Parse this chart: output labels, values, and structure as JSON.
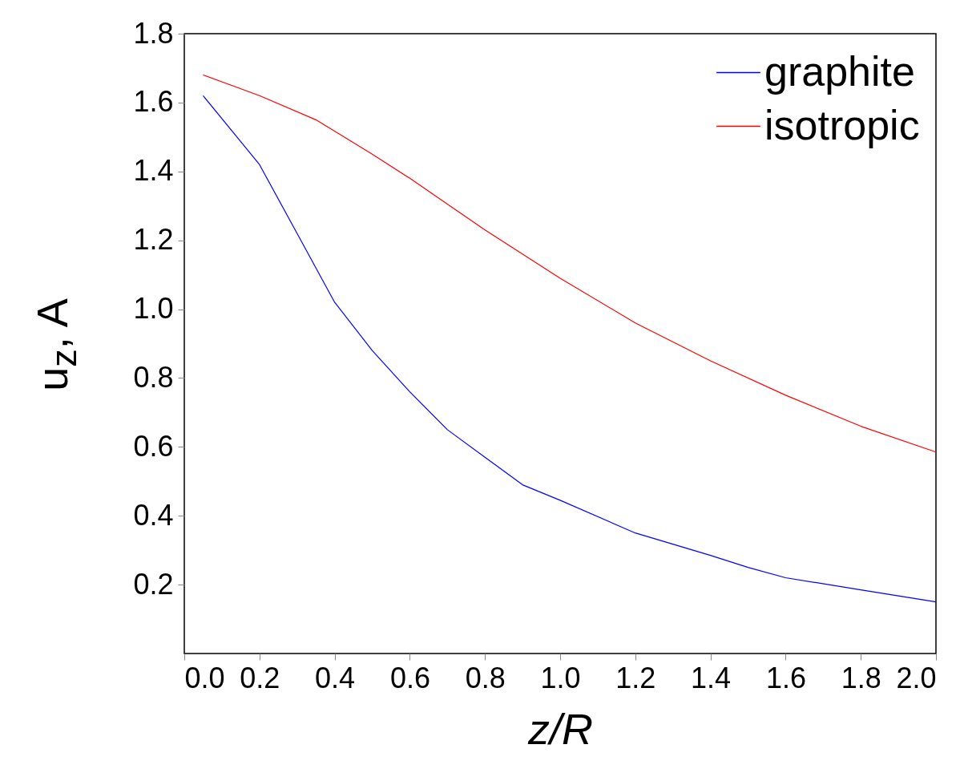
{
  "chart_data": {
    "type": "line",
    "xlabel": "z/R",
    "ylabel": "u$_{z}$, A",
    "xlim": [
      0,
      2
    ],
    "ylim": [
      0,
      1.8
    ],
    "xticks": [
      {
        "value": 0,
        "label": "0.0"
      },
      0.2,
      0.4,
      0.6,
      0.8,
      {
        "value": 1,
        "label": "1.0"
      },
      1.2,
      1.4,
      1.6,
      1.8,
      {
        "value": 2,
        "label": "2.0"
      }
    ],
    "yticks": [
      0.2,
      0.4,
      0.6,
      0.8,
      {
        "value": 1,
        "label": "1.0"
      },
      1.2,
      1.4,
      1.6,
      1.8
    ],
    "grid": false,
    "legend": "top right",
    "line_style": "solid",
    "marker": "none",
    "series": [
      {
        "name": "graphite",
        "color": "#0000ff",
        "x": [
          0.05,
          0.2,
          0.3,
          0.4,
          0.5,
          0.6,
          0.7,
          0.8,
          0.9,
          1.0,
          1.2,
          1.4,
          1.5,
          1.6,
          1.8,
          2.0
        ],
        "values": [
          1.62,
          1.42,
          1.22,
          1.02,
          0.88,
          0.76,
          0.65,
          0.57,
          0.49,
          0.445,
          0.35,
          0.285,
          0.25,
          0.22,
          0.185,
          0.15
        ]
      },
      {
        "name": "isotropic",
        "color": "#ff0000",
        "x": [
          0.05,
          0.2,
          0.35,
          0.5,
          0.6,
          0.8,
          1.0,
          1.2,
          1.4,
          1.6,
          1.8,
          2.0
        ],
        "values": [
          1.68,
          1.62,
          1.55,
          1.45,
          1.38,
          1.23,
          1.09,
          0.96,
          0.85,
          0.75,
          0.66,
          0.585
        ]
      }
    ]
  }
}
